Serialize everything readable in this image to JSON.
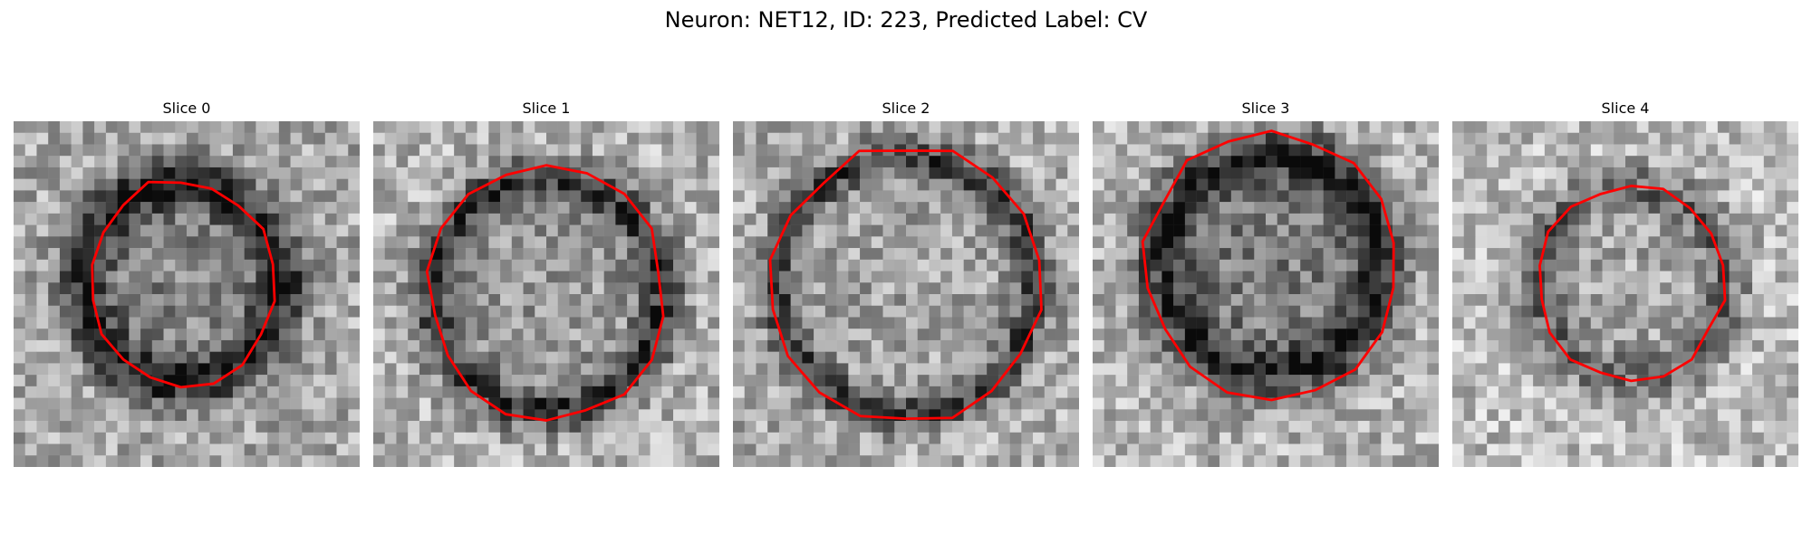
{
  "title": "Neuron: NET12, ID: 223, Predicted Label: CV",
  "outline_color": "#ff0000",
  "panels": [
    {
      "label": "Slice 0"
    },
    {
      "label": "Slice 1"
    },
    {
      "label": "Slice 2"
    },
    {
      "label": "Slice 3"
    },
    {
      "label": "Slice 4"
    }
  ]
}
